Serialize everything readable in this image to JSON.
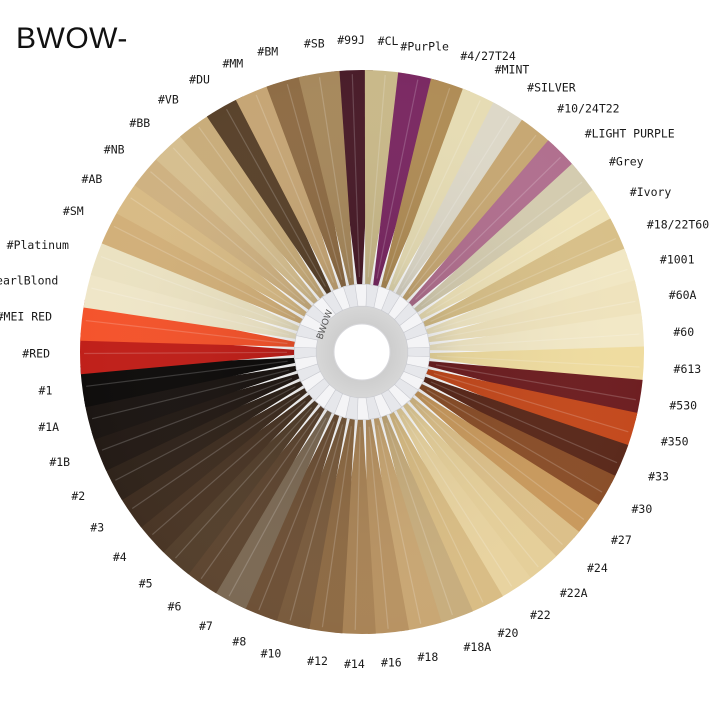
{
  "brand": {
    "title": "BWOW-"
  },
  "wheel": {
    "ring_label": "BWOW",
    "swatches": [
      {
        "label": "#99J",
        "color": "#4a1d2a"
      },
      {
        "label": "#CL",
        "color": "#c9b98a"
      },
      {
        "label": "#PurPle",
        "color": "#7b2a63"
      },
      {
        "label": "#4/27T24",
        "color": "#b08d57"
      },
      {
        "label": "#MINT",
        "color": "#e6dcb4"
      },
      {
        "label": "#SILVER",
        "color": "#ddd8c8"
      },
      {
        "label": "#10/24T22",
        "color": "#c7a874"
      },
      {
        "label": "#LIGHT PURPLE",
        "color": "#b1708f"
      },
      {
        "label": "#Grey",
        "color": "#d4ccb0"
      },
      {
        "label": "#Ivory",
        "color": "#eee2b8"
      },
      {
        "label": "#18/22T60",
        "color": "#d8c089"
      },
      {
        "label": "#1001",
        "color": "#f1e7c4"
      },
      {
        "label": "#60A",
        "color": "#efe3bd"
      },
      {
        "label": "#60",
        "color": "#f2e8c6"
      },
      {
        "label": "#613",
        "color": "#efdca0"
      },
      {
        "label": "#530",
        "color": "#6e1f22"
      },
      {
        "label": "#350",
        "color": "#c44a1e"
      },
      {
        "label": "#33",
        "color": "#5b2a1c"
      },
      {
        "label": "#30",
        "color": "#8a4f2a"
      },
      {
        "label": "#27",
        "color": "#c99a5e"
      },
      {
        "label": "#24",
        "color": "#dcc08a"
      },
      {
        "label": "#22A",
        "color": "#e5cf9a"
      },
      {
        "label": "#22",
        "color": "#e8d3a0"
      },
      {
        "label": "#20",
        "color": "#d9bd85"
      },
      {
        "label": "#18A",
        "color": "#c8ae7e"
      },
      {
        "label": "#18",
        "color": "#c9a774"
      },
      {
        "label": "#16",
        "color": "#b89363"
      },
      {
        "label": "#14",
        "color": "#a98457"
      },
      {
        "label": "#12",
        "color": "#8e6b45"
      },
      {
        "label": "#10",
        "color": "#7a5c3e"
      },
      {
        "label": "#8",
        "color": "#6e5137"
      },
      {
        "label": "#7",
        "color": "#7c6a55"
      },
      {
        "label": "#6",
        "color": "#5e4631"
      },
      {
        "label": "#5",
        "color": "#54402d"
      },
      {
        "label": "#4",
        "color": "#4a3626"
      },
      {
        "label": "#3",
        "color": "#3f2e21"
      },
      {
        "label": "#2",
        "color": "#30241b"
      },
      {
        "label": "#1B",
        "color": "#241b16"
      },
      {
        "label": "#1A",
        "color": "#1c1613"
      },
      {
        "label": "#1",
        "color": "#0f0d0c"
      },
      {
        "label": "#RED",
        "color": "#c0201a"
      },
      {
        "label": "#MEI RED",
        "color": "#f4542c"
      },
      {
        "label": "#PearlBlond",
        "color": "#efe6c8"
      },
      {
        "label": "#Platinum",
        "color": "#ebe2c2"
      },
      {
        "label": "#SM",
        "color": "#d2b07a"
      },
      {
        "label": "#AB",
        "color": "#d8bb86"
      },
      {
        "label": "#NB",
        "color": "#cfb282"
      },
      {
        "label": "#BB",
        "color": "#d6bf90"
      },
      {
        "label": "#VB",
        "color": "#c9ad7b"
      },
      {
        "label": "#DU",
        "color": "#5a432c"
      },
      {
        "label": "#MM",
        "color": "#c6a676"
      },
      {
        "label": "#BM",
        "color": "#8f6d46"
      },
      {
        "label": "#SB",
        "color": "#a7895d"
      }
    ]
  }
}
